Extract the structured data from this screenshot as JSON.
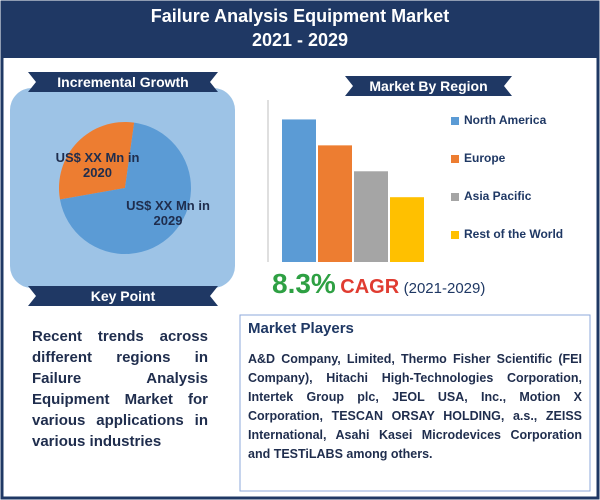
{
  "title": "Failure Analysis Equipment Market",
  "subtitle": "2021 - 2029",
  "chart_data": [
    {
      "type": "pie",
      "title": "Incremental Growth",
      "categories": [
        "US$ XX Mn in 2020",
        "US$ XX Mn in 2029"
      ],
      "values": [
        30,
        70
      ],
      "colors": [
        "#ed7d31",
        "#5b9bd5"
      ]
    },
    {
      "type": "bar",
      "title": "Market By Region",
      "categories": [
        "North America",
        "Europe",
        "Asia Pacific",
        "Rest of the World"
      ],
      "values": [
        0.88,
        0.72,
        0.56,
        0.4
      ],
      "colors": [
        "#5b9bd5",
        "#ed7d31",
        "#a5a5a5",
        "#ffc000"
      ],
      "ylim": [
        0,
        1
      ],
      "legend": "right"
    }
  ],
  "cagr": {
    "value": "8.3%",
    "label": "CAGR",
    "period": "(2021-2029)"
  },
  "key_point": {
    "heading": "Key Point",
    "text": "Recent trends across different regions in Failure Analysis Equipment Market for various applications in various industries"
  },
  "market_players": {
    "heading": "Market Players",
    "text": "A&D Company, Limited, Thermo Fisher Scientific (FEI Company), Hitachi High-Technologies Corporation, Intertek Group plc, JEOL USA, Inc., Motion X Corporation, TESCAN ORSAY HOLDING, a.s., ZEISS International, Asahi Kasei Microdevices Corporation and TESTiLABS among others."
  }
}
